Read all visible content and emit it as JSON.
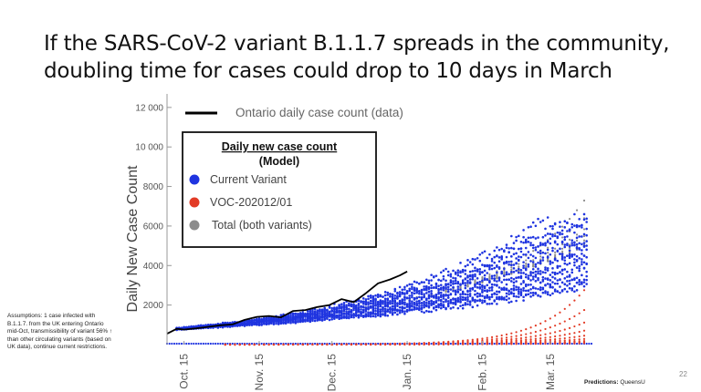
{
  "slide": {
    "title_line1": "If the SARS-CoV-2 variant B.1.1.7 spreads in the community,",
    "title_line2": "doubling time for cases could drop to 10 days in March",
    "assumptions": "Assumptions: 1 case infected with B.1.1.7. from the UK entering Ontario mid-Oct, transmissibility of variant 56% ↑ than other circulating variants (based on UK data), continue current restrictions.",
    "footer_label": "Predictions:",
    "footer_value": "QueensU",
    "page_number": "22"
  },
  "chart_data": {
    "type": "scatter",
    "ylabel": "Daily New Case Count",
    "ylim": [
      0,
      12500
    ],
    "yticks": [
      2000,
      4000,
      6000,
      8000,
      10000,
      12000
    ],
    "ytick_labels": [
      "2000",
      "4000",
      "6000",
      "8000",
      "10 000",
      "12 000"
    ],
    "xlim": [
      "2020-10-08",
      "2021-04-01"
    ],
    "xticks": [
      "2020-10-15",
      "2020-11-15",
      "2020-12-15",
      "2021-01-15",
      "2021-02-15",
      "2021-03-15"
    ],
    "xtick_labels": [
      "Oct. 15",
      "Nov. 15",
      "Dec. 15",
      "Jan. 15",
      "Feb. 15",
      "Mar. 15"
    ],
    "data_legend": "Ontario daily case count (data)",
    "legend_title_line1": "Daily new case count",
    "legend_title_line2": "(Model)",
    "series": [
      {
        "name": "Current Variant",
        "color": "#1f34e0"
      },
      {
        "name": "VOC-202012/01",
        "color": "#e23b26"
      },
      {
        "name": "Total (both variants)",
        "color": "#8c8c8c"
      }
    ],
    "data_series": {
      "name": "Ontario daily case count (data)",
      "color": "#000000",
      "x": [
        "2020-10-08",
        "2020-10-12",
        "2020-10-15",
        "2020-10-20",
        "2020-10-25",
        "2020-10-30",
        "2020-11-04",
        "2020-11-09",
        "2020-11-14",
        "2020-11-19",
        "2020-11-24",
        "2020-11-29",
        "2020-12-04",
        "2020-12-09",
        "2020-12-14",
        "2020-12-19",
        "2020-12-24",
        "2020-12-29",
        "2021-01-03",
        "2021-01-08",
        "2021-01-12",
        "2021-01-15"
      ],
      "y": [
        550,
        800,
        760,
        820,
        900,
        980,
        1020,
        1250,
        1400,
        1450,
        1380,
        1700,
        1750,
        1900,
        2000,
        2300,
        2150,
        2600,
        3100,
        3300,
        3500,
        3700
      ]
    }
  }
}
